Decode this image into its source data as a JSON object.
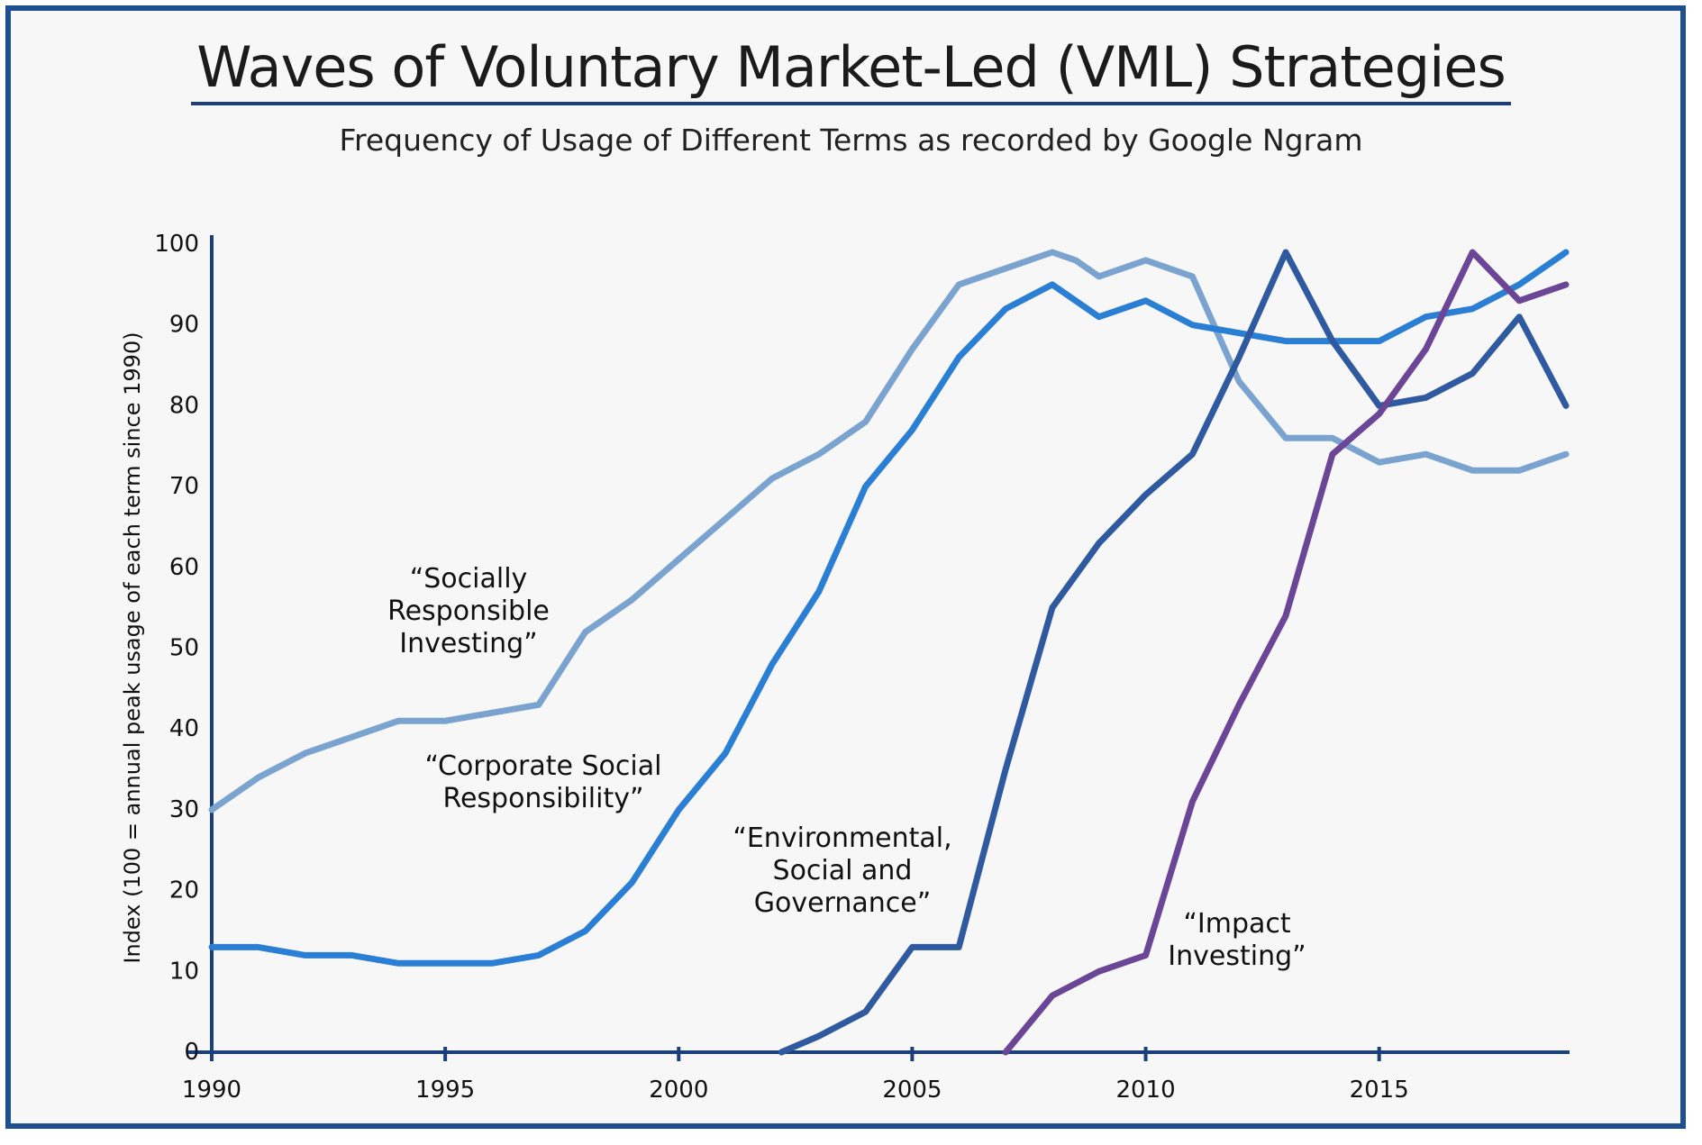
{
  "chart_data": {
    "type": "line",
    "title": "Waves of Voluntary Market-Led (VML) Strategies",
    "subtitle": "Frequency of Usage of Different Terms as recorded by Google Ngram",
    "ylabel": "Index (100 = annual peak usage of each term since 1990)",
    "xlabel": "",
    "xlim": [
      1990,
      2019
    ],
    "ylim": [
      0,
      100
    ],
    "x_ticks": [
      1990,
      1995,
      2000,
      2005,
      2010,
      2015
    ],
    "y_ticks": [
      0,
      10,
      20,
      30,
      40,
      50,
      60,
      70,
      80,
      90,
      100
    ],
    "grid": false,
    "series": [
      {
        "name": "“Socially Responsible Investing”",
        "color": "#7aa4cf",
        "label_lines": [
          "“Socially",
          "Responsible",
          "Investing”"
        ],
        "points": [
          [
            1990,
            30
          ],
          [
            1991,
            34
          ],
          [
            1992,
            37
          ],
          [
            1993,
            39
          ],
          [
            1994,
            41
          ],
          [
            1995,
            41
          ],
          [
            1996,
            42
          ],
          [
            1997,
            43
          ],
          [
            1998,
            52
          ],
          [
            1999,
            56
          ],
          [
            2000,
            61
          ],
          [
            2001,
            66
          ],
          [
            2002,
            71
          ],
          [
            2003,
            74
          ],
          [
            2004,
            78
          ],
          [
            2005,
            87
          ],
          [
            2006,
            95
          ],
          [
            2007,
            97
          ],
          [
            2008,
            99
          ],
          [
            2008.5,
            98
          ],
          [
            2009,
            96
          ],
          [
            2010,
            98
          ],
          [
            2011,
            96
          ],
          [
            2012,
            83
          ],
          [
            2013,
            76
          ],
          [
            2014,
            76
          ],
          [
            2015,
            73
          ],
          [
            2016,
            74
          ],
          [
            2017,
            72
          ],
          [
            2018,
            72
          ],
          [
            2019,
            74
          ]
        ]
      },
      {
        "name": "“Corporate Social Responsibility”",
        "color": "#2a7fd4",
        "label_lines": [
          "“Corporate Social",
          "Responsibility”"
        ],
        "points": [
          [
            1990,
            13
          ],
          [
            1991,
            13
          ],
          [
            1992,
            12
          ],
          [
            1993,
            12
          ],
          [
            1994,
            11
          ],
          [
            1995,
            11
          ],
          [
            1996,
            11
          ],
          [
            1997,
            12
          ],
          [
            1998,
            15
          ],
          [
            1999,
            21
          ],
          [
            2000,
            30
          ],
          [
            2001,
            37
          ],
          [
            2002,
            48
          ],
          [
            2003,
            57
          ],
          [
            2004,
            70
          ],
          [
            2005,
            77
          ],
          [
            2006,
            86
          ],
          [
            2007,
            92
          ],
          [
            2008,
            95
          ],
          [
            2009,
            91
          ],
          [
            2010,
            93
          ],
          [
            2011,
            90
          ],
          [
            2012,
            89
          ],
          [
            2013,
            88
          ],
          [
            2014,
            88
          ],
          [
            2015,
            88
          ],
          [
            2016,
            91
          ],
          [
            2017,
            92
          ],
          [
            2018,
            95
          ],
          [
            2019,
            99
          ]
        ]
      },
      {
        "name": "“Environmental, Social and Governance”",
        "color": "#2f5aa0",
        "label_lines": [
          "“Environmental,",
          "Social and",
          "Governance”"
        ],
        "points": [
          [
            2002.2,
            0
          ],
          [
            2003,
            2
          ],
          [
            2004,
            5
          ],
          [
            2005,
            13
          ],
          [
            2006,
            13
          ],
          [
            2007,
            35
          ],
          [
            2008,
            55
          ],
          [
            2009,
            63
          ],
          [
            2010,
            69
          ],
          [
            2011,
            74
          ],
          [
            2012,
            86
          ],
          [
            2013,
            99
          ],
          [
            2014,
            88
          ],
          [
            2015,
            80
          ],
          [
            2016,
            81
          ],
          [
            2017,
            84
          ],
          [
            2018,
            91
          ],
          [
            2019,
            80
          ]
        ]
      },
      {
        "name": "“Impact Investing”",
        "color": "#6b4596",
        "label_lines": [
          "“Impact",
          "Investing”"
        ],
        "points": [
          [
            2007,
            0
          ],
          [
            2008,
            7
          ],
          [
            2009,
            10
          ],
          [
            2010,
            12
          ],
          [
            2011,
            31
          ],
          [
            2012,
            43
          ],
          [
            2013,
            54
          ],
          [
            2014,
            74
          ],
          [
            2015,
            79
          ],
          [
            2016,
            87
          ],
          [
            2017,
            99
          ],
          [
            2018,
            93
          ],
          [
            2019,
            95
          ]
        ]
      }
    ]
  }
}
